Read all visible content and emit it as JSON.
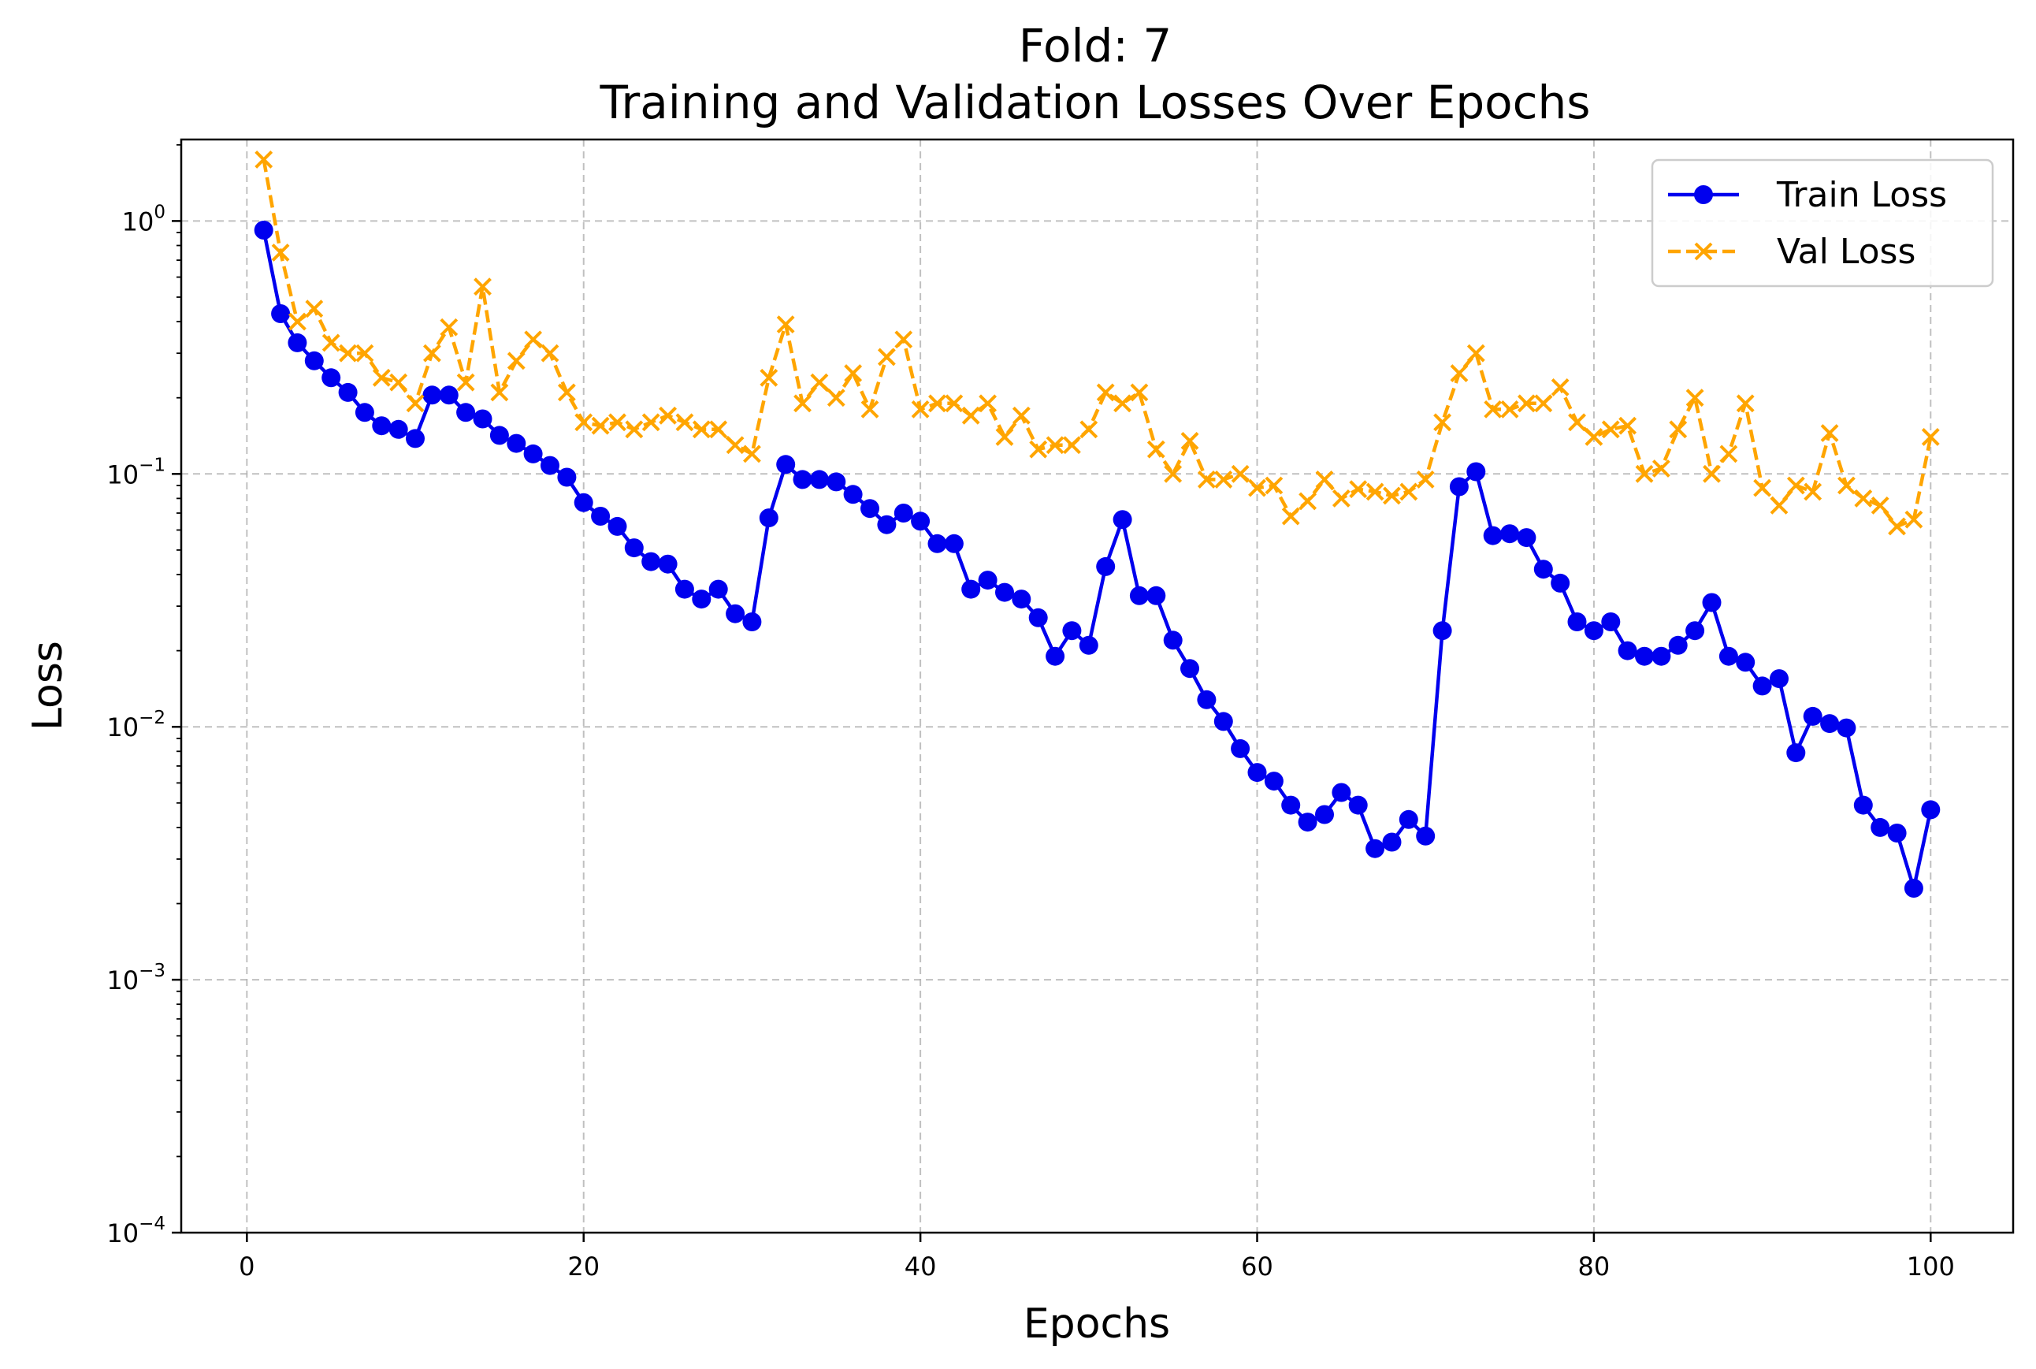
{
  "chart_data": {
    "type": "line",
    "title_line1": "Fold: 7",
    "title_line2": "Training and Validation Losses Over Epochs",
    "xlabel": "Epochs",
    "ylabel": "Loss",
    "yscale": "log",
    "xlim": [
      -3.9,
      104.9
    ],
    "ylim": [
      0.0001,
      2.1
    ],
    "xticks": [
      0,
      20,
      40,
      60,
      80,
      100
    ],
    "yticks": [
      {
        "value": 0.0001,
        "base": "10",
        "exp": "−4"
      },
      {
        "value": 0.001,
        "base": "10",
        "exp": "−3"
      },
      {
        "value": 0.01,
        "base": "10",
        "exp": "−2"
      },
      {
        "value": 0.1,
        "base": "10",
        "exp": "−1"
      },
      {
        "value": 1,
        "base": "10",
        "exp": "0"
      }
    ],
    "grid": true,
    "legend_position": "top-right",
    "series": [
      {
        "name": "Train Loss",
        "color": "#0000ee",
        "marker": "circle",
        "linestyle": "solid",
        "x": [
          1,
          2,
          3,
          4,
          5,
          6,
          7,
          8,
          9,
          10,
          11,
          12,
          13,
          14,
          15,
          16,
          17,
          18,
          19,
          20,
          21,
          22,
          23,
          24,
          25,
          26,
          27,
          28,
          29,
          30,
          31,
          32,
          33,
          34,
          35,
          36,
          37,
          38,
          39,
          40,
          41,
          42,
          43,
          44,
          45,
          46,
          47,
          48,
          49,
          50,
          51,
          52,
          53,
          54,
          55,
          56,
          57,
          58,
          59,
          60,
          61,
          62,
          63,
          64,
          65,
          66,
          67,
          68,
          69,
          70,
          71,
          72,
          73,
          74,
          75,
          76,
          77,
          78,
          79,
          80,
          81,
          82,
          83,
          84,
          85,
          86,
          87,
          88,
          89,
          90,
          91,
          92,
          93,
          94,
          95,
          96,
          97,
          98,
          99,
          100
        ],
        "values": [
          0.92,
          0.43,
          0.33,
          0.28,
          0.24,
          0.21,
          0.175,
          0.155,
          0.15,
          0.138,
          0.205,
          0.205,
          0.175,
          0.165,
          0.142,
          0.132,
          0.12,
          0.108,
          0.097,
          0.077,
          0.068,
          0.062,
          0.051,
          0.045,
          0.044,
          0.035,
          0.032,
          0.035,
          0.028,
          0.026,
          0.067,
          0.109,
          0.095,
          0.095,
          0.093,
          0.083,
          0.073,
          0.063,
          0.07,
          0.065,
          0.053,
          0.053,
          0.035,
          0.038,
          0.034,
          0.032,
          0.027,
          0.019,
          0.024,
          0.021,
          0.043,
          0.066,
          0.033,
          0.033,
          0.022,
          0.017,
          0.0128,
          0.0105,
          0.0082,
          0.0066,
          0.0061,
          0.0049,
          0.0042,
          0.0045,
          0.0055,
          0.0049,
          0.0033,
          0.0035,
          0.0043,
          0.0037,
          0.024,
          0.089,
          0.102,
          0.057,
          0.058,
          0.056,
          0.042,
          0.037,
          0.026,
          0.024,
          0.026,
          0.02,
          0.019,
          0.019,
          0.021,
          0.024,
          0.031,
          0.019,
          0.018,
          0.0145,
          0.0155,
          0.0079,
          0.011,
          0.0103,
          0.0099,
          0.0049,
          0.004,
          0.0038,
          0.0023,
          0.0047
        ]
      },
      {
        "name": "Val Loss",
        "color": "#ffa500",
        "marker": "x",
        "linestyle": "dashed",
        "x": [
          1,
          2,
          3,
          4,
          5,
          6,
          7,
          8,
          9,
          10,
          11,
          12,
          13,
          14,
          15,
          16,
          17,
          18,
          19,
          20,
          21,
          22,
          23,
          24,
          25,
          26,
          27,
          28,
          29,
          30,
          31,
          32,
          33,
          34,
          35,
          36,
          37,
          38,
          39,
          40,
          41,
          42,
          43,
          44,
          45,
          46,
          47,
          48,
          49,
          50,
          51,
          52,
          53,
          54,
          55,
          56,
          57,
          58,
          59,
          60,
          61,
          62,
          63,
          64,
          65,
          66,
          67,
          68,
          69,
          70,
          71,
          72,
          73,
          74,
          75,
          76,
          77,
          78,
          79,
          80,
          81,
          82,
          83,
          84,
          85,
          86,
          87,
          88,
          89,
          90,
          91,
          92,
          93,
          94,
          95,
          96,
          97,
          98,
          99,
          100
        ],
        "values": [
          1.75,
          0.75,
          0.4,
          0.45,
          0.33,
          0.3,
          0.3,
          0.24,
          0.23,
          0.19,
          0.3,
          0.38,
          0.23,
          0.55,
          0.21,
          0.28,
          0.34,
          0.3,
          0.21,
          0.16,
          0.155,
          0.16,
          0.15,
          0.16,
          0.17,
          0.16,
          0.15,
          0.15,
          0.13,
          0.12,
          0.24,
          0.39,
          0.19,
          0.23,
          0.2,
          0.25,
          0.18,
          0.29,
          0.34,
          0.18,
          0.19,
          0.19,
          0.17,
          0.19,
          0.14,
          0.17,
          0.125,
          0.13,
          0.13,
          0.15,
          0.21,
          0.19,
          0.21,
          0.125,
          0.1,
          0.135,
          0.095,
          0.095,
          0.1,
          0.088,
          0.09,
          0.068,
          0.078,
          0.095,
          0.08,
          0.087,
          0.085,
          0.082,
          0.085,
          0.095,
          0.16,
          0.25,
          0.3,
          0.18,
          0.18,
          0.19,
          0.19,
          0.22,
          0.16,
          0.14,
          0.15,
          0.155,
          0.1,
          0.105,
          0.15,
          0.2,
          0.1,
          0.12,
          0.19,
          0.088,
          0.075,
          0.09,
          0.085,
          0.145,
          0.09,
          0.08,
          0.075,
          0.062,
          0.066,
          0.14
        ]
      }
    ]
  }
}
